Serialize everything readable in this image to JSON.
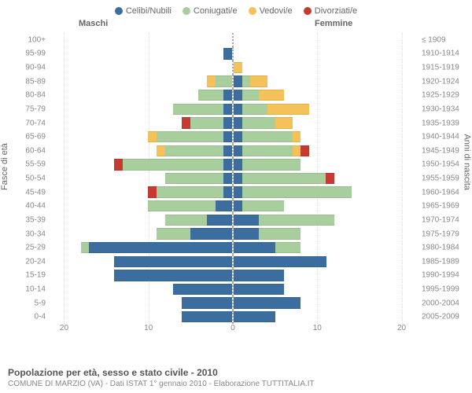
{
  "legend": [
    {
      "label": "Celibi/Nubili",
      "color": "#3b6e9e"
    },
    {
      "label": "Coniugati/e",
      "color": "#a9ce9d"
    },
    {
      "label": "Vedovi/e",
      "color": "#f5c25a"
    },
    {
      "label": "Divorziati/e",
      "color": "#c63a32"
    }
  ],
  "headers": {
    "male": "Maschi",
    "female": "Femmine"
  },
  "y_left_title": "Fasce di età",
  "y_right_title": "Anni di nascita",
  "x_max": 22,
  "x_ticks": [
    20,
    10,
    0,
    10,
    20
  ],
  "rows": [
    {
      "age": "100+",
      "birth": "≤ 1909",
      "m": [
        0,
        0,
        0,
        0
      ],
      "f": [
        0,
        0,
        0,
        0
      ]
    },
    {
      "age": "95-99",
      "birth": "1910-1914",
      "m": [
        1,
        0,
        0,
        0
      ],
      "f": [
        0,
        0,
        0,
        0
      ]
    },
    {
      "age": "90-94",
      "birth": "1915-1919",
      "m": [
        0,
        0,
        0,
        0
      ],
      "f": [
        0,
        0,
        1,
        0
      ]
    },
    {
      "age": "85-89",
      "birth": "1920-1924",
      "m": [
        0,
        2,
        1,
        0
      ],
      "f": [
        1,
        1,
        2,
        0
      ]
    },
    {
      "age": "80-84",
      "birth": "1925-1929",
      "m": [
        1,
        3,
        0,
        0
      ],
      "f": [
        1,
        2,
        3,
        0
      ]
    },
    {
      "age": "75-79",
      "birth": "1930-1934",
      "m": [
        1,
        6,
        0,
        0
      ],
      "f": [
        1,
        3,
        5,
        0
      ]
    },
    {
      "age": "70-74",
      "birth": "1935-1939",
      "m": [
        1,
        4,
        0,
        1
      ],
      "f": [
        1,
        4,
        2,
        0
      ]
    },
    {
      "age": "65-69",
      "birth": "1940-1944",
      "m": [
        1,
        8,
        1,
        0
      ],
      "f": [
        1,
        6,
        1,
        0
      ]
    },
    {
      "age": "60-64",
      "birth": "1945-1949",
      "m": [
        1,
        7,
        1,
        0
      ],
      "f": [
        1,
        6,
        1,
        1
      ]
    },
    {
      "age": "55-59",
      "birth": "1950-1954",
      "m": [
        1,
        12,
        0,
        1
      ],
      "f": [
        1,
        7,
        0,
        0
      ]
    },
    {
      "age": "50-54",
      "birth": "1955-1959",
      "m": [
        1,
        7,
        0,
        0
      ],
      "f": [
        1,
        10,
        0,
        1
      ]
    },
    {
      "age": "45-49",
      "birth": "1960-1964",
      "m": [
        1,
        8,
        0,
        1
      ],
      "f": [
        1,
        13,
        0,
        0
      ]
    },
    {
      "age": "40-44",
      "birth": "1965-1969",
      "m": [
        2,
        8,
        0,
        0
      ],
      "f": [
        1,
        5,
        0,
        0
      ]
    },
    {
      "age": "35-39",
      "birth": "1970-1974",
      "m": [
        3,
        5,
        0,
        0
      ],
      "f": [
        3,
        9,
        0,
        0
      ]
    },
    {
      "age": "30-34",
      "birth": "1975-1979",
      "m": [
        5,
        4,
        0,
        0
      ],
      "f": [
        3,
        5,
        0,
        0
      ]
    },
    {
      "age": "25-29",
      "birth": "1980-1984",
      "m": [
        17,
        1,
        0,
        0
      ],
      "f": [
        5,
        3,
        0,
        0
      ]
    },
    {
      "age": "20-24",
      "birth": "1985-1989",
      "m": [
        14,
        0,
        0,
        0
      ],
      "f": [
        11,
        0,
        0,
        0
      ]
    },
    {
      "age": "15-19",
      "birth": "1990-1994",
      "m": [
        14,
        0,
        0,
        0
      ],
      "f": [
        6,
        0,
        0,
        0
      ]
    },
    {
      "age": "10-14",
      "birth": "1995-1999",
      "m": [
        7,
        0,
        0,
        0
      ],
      "f": [
        6,
        0,
        0,
        0
      ]
    },
    {
      "age": "5-9",
      "birth": "2000-2004",
      "m": [
        6,
        0,
        0,
        0
      ],
      "f": [
        8,
        0,
        0,
        0
      ]
    },
    {
      "age": "0-4",
      "birth": "2005-2009",
      "m": [
        6,
        0,
        0,
        0
      ],
      "f": [
        5,
        0,
        0,
        0
      ]
    }
  ],
  "footer": {
    "title": "Popolazione per età, sesso e stato civile - 2010",
    "sub": "COMUNE DI MARZIO (VA) - Dati ISTAT 1° gennaio 2010 - Elaborazione TUTTITALIA.IT"
  }
}
